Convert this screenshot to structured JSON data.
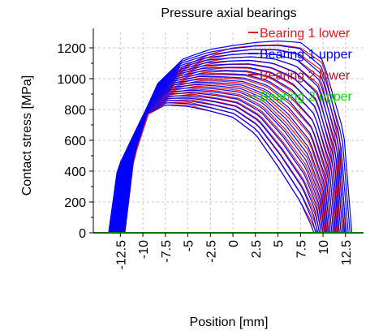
{
  "chart_data": {
    "type": "line",
    "title": "Pressure axial bearings",
    "xlabel": "Position [mm]",
    "ylabel": "Contact stress [MPa]",
    "xlim": [
      -15.5,
      14.5
    ],
    "ylim": [
      0,
      1300
    ],
    "x_ticks": [
      -12.5,
      -10,
      -7.5,
      -5,
      -2.5,
      0,
      2.5,
      5,
      7.5,
      10,
      12.5
    ],
    "x_tick_labels": [
      "-12.5",
      "-10",
      "-7.5",
      "-5",
      "-2.5",
      "0",
      "2.5",
      "5",
      "7.5",
      "10",
      "12.5"
    ],
    "y_ticks": [
      0,
      200,
      400,
      600,
      800,
      1000,
      1200
    ],
    "y_tick_labels": [
      "0",
      "200",
      "400",
      "600",
      "800",
      "1000",
      "1200"
    ],
    "grid": true,
    "legend_position": "top-right",
    "legend_overlaps_plot": true,
    "series": [
      {
        "name": "Bearing 1 lower",
        "color": "#e31a1c",
        "curves": 20,
        "profile_first": {
          "x": [
            -13.5,
            -12.5,
            -10,
            -7.5,
            -5,
            -2.5,
            0,
            2.5,
            5,
            7.5,
            8.8,
            9.3
          ],
          "y": [
            0,
            400,
            750,
            830,
            830,
            790,
            750,
            640,
            430,
            200,
            60,
            0
          ]
        },
        "profile_last": {
          "x": [
            -12.0,
            -11.0,
            -8.5,
            -5.5,
            -2.5,
            0,
            2.5,
            5,
            7.5,
            10,
            11.8,
            12.5
          ],
          "y": [
            0,
            480,
            930,
            1080,
            1160,
            1200,
            1215,
            1220,
            1200,
            1100,
            650,
            0
          ]
        }
      },
      {
        "name": "Bearing 1 upper",
        "color": "#0000ff",
        "curves": 22,
        "profile_first": {
          "x": [
            -13.8,
            -12.8,
            -10,
            -7.5,
            -5,
            -2.5,
            0,
            2.5,
            5,
            7.5,
            8.6,
            9.0
          ],
          "y": [
            0,
            420,
            760,
            830,
            820,
            790,
            750,
            640,
            430,
            200,
            60,
            0
          ]
        },
        "profile_last": {
          "x": [
            -12.0,
            -11.0,
            -8.5,
            -5.5,
            -2.5,
            0,
            2.5,
            5,
            7.5,
            10,
            12.3,
            13.2
          ],
          "y": [
            0,
            500,
            960,
            1130,
            1190,
            1215,
            1235,
            1245,
            1235,
            1120,
            650,
            0
          ]
        }
      },
      {
        "name": "Bearing 2 lower",
        "color": "#b2182b",
        "curves": 1,
        "profile_first": {
          "x": [],
          "y": []
        },
        "profile_last": {
          "x": [],
          "y": []
        }
      },
      {
        "name": "Bearing 2 upper",
        "color": "#00e000",
        "curves": 1,
        "profile_first": {
          "x": [
            -15.5,
            14.5
          ],
          "y": [
            0,
            0
          ]
        },
        "profile_last": {
          "x": [
            -15.5,
            14.5
          ],
          "y": [
            0,
            0
          ]
        }
      }
    ]
  }
}
